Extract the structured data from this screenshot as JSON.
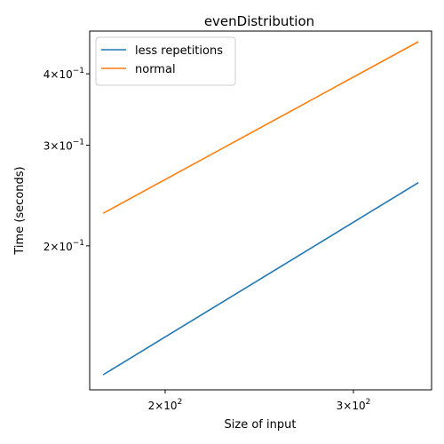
{
  "chart_data": {
    "type": "line",
    "title": "evenDistribution",
    "xlabel": "Size of input",
    "ylabel": "Time (seconds)",
    "xscale": "log",
    "yscale": "log",
    "xlim": [
      170,
      355
    ],
    "ylim": [
      0.112,
      0.475
    ],
    "x_ticks": [
      {
        "value": 200,
        "base": "2",
        "exp": "2"
      },
      {
        "value": 300,
        "base": "3",
        "exp": "2"
      }
    ],
    "y_ticks": [
      {
        "value": 0.2,
        "base": "2",
        "exp": "−1"
      },
      {
        "value": 0.3,
        "base": "3",
        "exp": "−1"
      },
      {
        "value": 0.4,
        "base": "4",
        "exp": "−1"
      }
    ],
    "grid": false,
    "legend": "top-left",
    "series": [
      {
        "name": "less repetitions",
        "color": "#1f77b4",
        "x": [
          175,
          345
        ],
        "y": [
          0.119,
          0.258
        ]
      },
      {
        "name": "normal",
        "color": "#ff7f0e",
        "x": [
          175,
          345
        ],
        "y": [
          0.228,
          0.455
        ]
      }
    ]
  }
}
